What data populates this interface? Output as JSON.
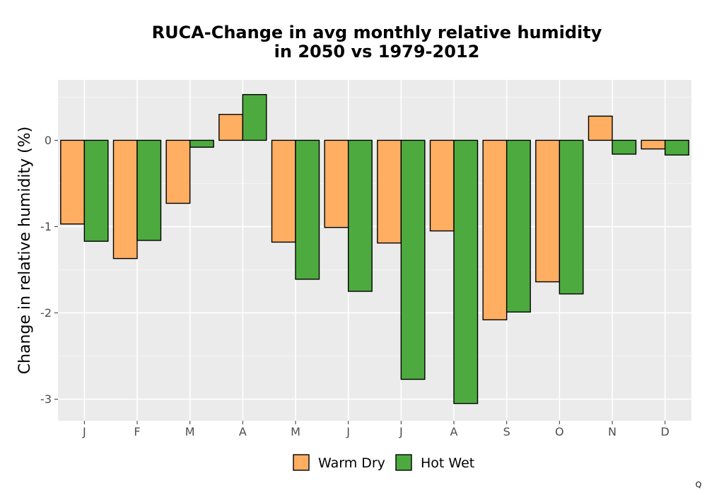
{
  "chart_data": {
    "type": "bar",
    "title_lines": [
      "RUCA-Change in avg monthly relative humidity",
      "in 2050 vs 1979-2012"
    ],
    "ylabel": "Change in relative humidity (%)",
    "xlabel": "",
    "categories": [
      "J",
      "F",
      "M",
      "A",
      "M",
      "J",
      "J",
      "A",
      "S",
      "O",
      "N",
      "D"
    ],
    "y_ticks": [
      0,
      -1,
      -2,
      -3
    ],
    "y_tick_labels": [
      "0",
      "-1",
      "-2",
      "-3"
    ],
    "ylim": [
      -3.25,
      0.7
    ],
    "grid": true,
    "legend_position": "bottom",
    "series": [
      {
        "name": "Warm Dry",
        "color": "#FFAE62",
        "values": [
          -0.97,
          -1.37,
          -0.73,
          0.3,
          -1.18,
          -1.01,
          -1.19,
          -1.05,
          -2.08,
          -1.64,
          0.28,
          -0.1
        ]
      },
      {
        "name": "Hot Wet",
        "color": "#4DAA3F",
        "values": [
          -1.17,
          -1.16,
          -0.08,
          0.53,
          -1.61,
          -1.75,
          -2.77,
          -3.05,
          -1.99,
          -1.78,
          -0.16,
          -0.17
        ]
      }
    ]
  },
  "corner_mark": "Q"
}
